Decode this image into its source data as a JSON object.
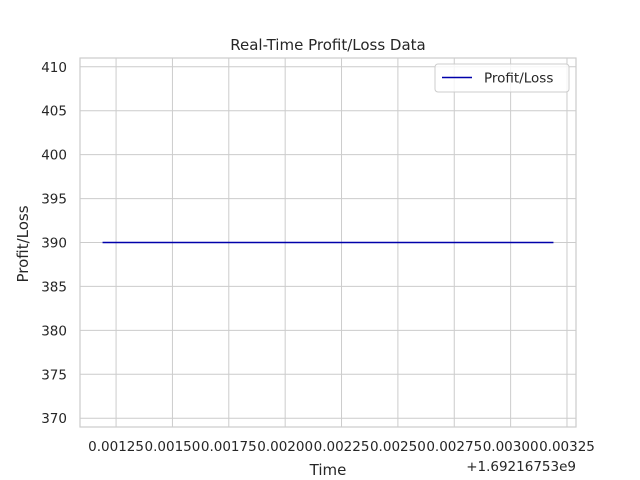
{
  "chart_data": {
    "type": "line",
    "title": "Real-Time Profit/Loss Data",
    "xlabel": "Time",
    "ylabel": "Profit/Loss",
    "x_offset_label": "+1.69216753e9",
    "x": [
      0.00119,
      0.00319
    ],
    "series": [
      {
        "name": "Profit/Loss",
        "color": "#0000aa",
        "values": [
          390,
          390
        ]
      }
    ],
    "xlim": [
      0.00109,
      0.00329
    ],
    "ylim": [
      369,
      411
    ],
    "xticks": [
      0.00125,
      0.0015,
      0.00175,
      0.002,
      0.00225,
      0.0025,
      0.00275,
      0.003,
      0.00325
    ],
    "xtick_labels": [
      "0.00125",
      "0.00150",
      "0.00175",
      "0.00200",
      "0.00225",
      "0.00250",
      "0.00275",
      "0.00300",
      "0.00325"
    ],
    "yticks": [
      370,
      375,
      380,
      385,
      390,
      395,
      400,
      405,
      410
    ],
    "ytick_labels": [
      "370",
      "375",
      "380",
      "385",
      "390",
      "395",
      "400",
      "405",
      "410"
    ],
    "grid": true,
    "legend": "top-right",
    "colors": {
      "grid": "#cccccc",
      "spine": "#cccccc",
      "text": "#262626"
    }
  }
}
